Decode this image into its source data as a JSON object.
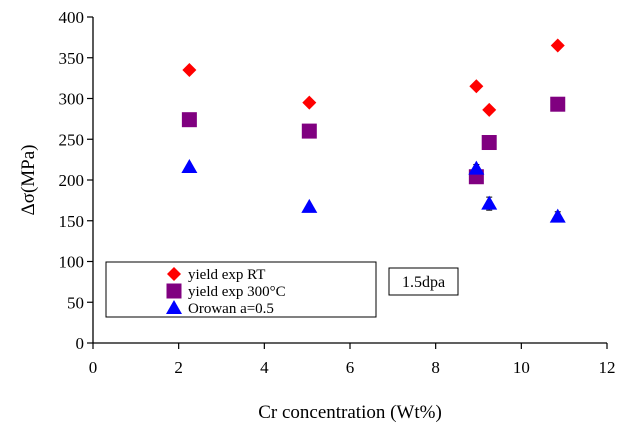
{
  "chart_data": {
    "type": "scatter",
    "title": "",
    "xlabel": "Cr concentration (Wt%)",
    "ylabel": "Δσ(MPa)",
    "xlim": [
      0,
      12
    ],
    "ylim": [
      0,
      400
    ],
    "xticks": [
      0,
      2,
      4,
      6,
      8,
      10,
      12
    ],
    "yticks": [
      0,
      50,
      100,
      150,
      200,
      250,
      300,
      350,
      400
    ],
    "grid": false,
    "legend_position": "bottom-left",
    "annotation": "1.5dpa",
    "series": [
      {
        "name": "yield exp RT",
        "marker": "diamond",
        "color": "#ff0000",
        "points": [
          [
            2.25,
            335
          ],
          [
            5.05,
            295
          ],
          [
            8.95,
            315
          ],
          [
            9.25,
            286
          ],
          [
            10.85,
            365
          ]
        ]
      },
      {
        "name": "yield exp 300°C",
        "marker": "square",
        "color": "#800080",
        "points": [
          [
            2.25,
            274
          ],
          [
            5.05,
            260
          ],
          [
            8.95,
            204
          ],
          [
            9.25,
            246
          ],
          [
            10.85,
            293
          ]
        ]
      },
      {
        "name": "Orowan a=0.5",
        "marker": "triangle",
        "color": "#0000ff",
        "error_color": "#000000",
        "points": [
          [
            2.25,
            216,
            0
          ],
          [
            5.05,
            167,
            0
          ],
          [
            8.95,
            214,
            5
          ],
          [
            9.25,
            171,
            8
          ],
          [
            10.85,
            155,
            6
          ]
        ]
      }
    ]
  }
}
